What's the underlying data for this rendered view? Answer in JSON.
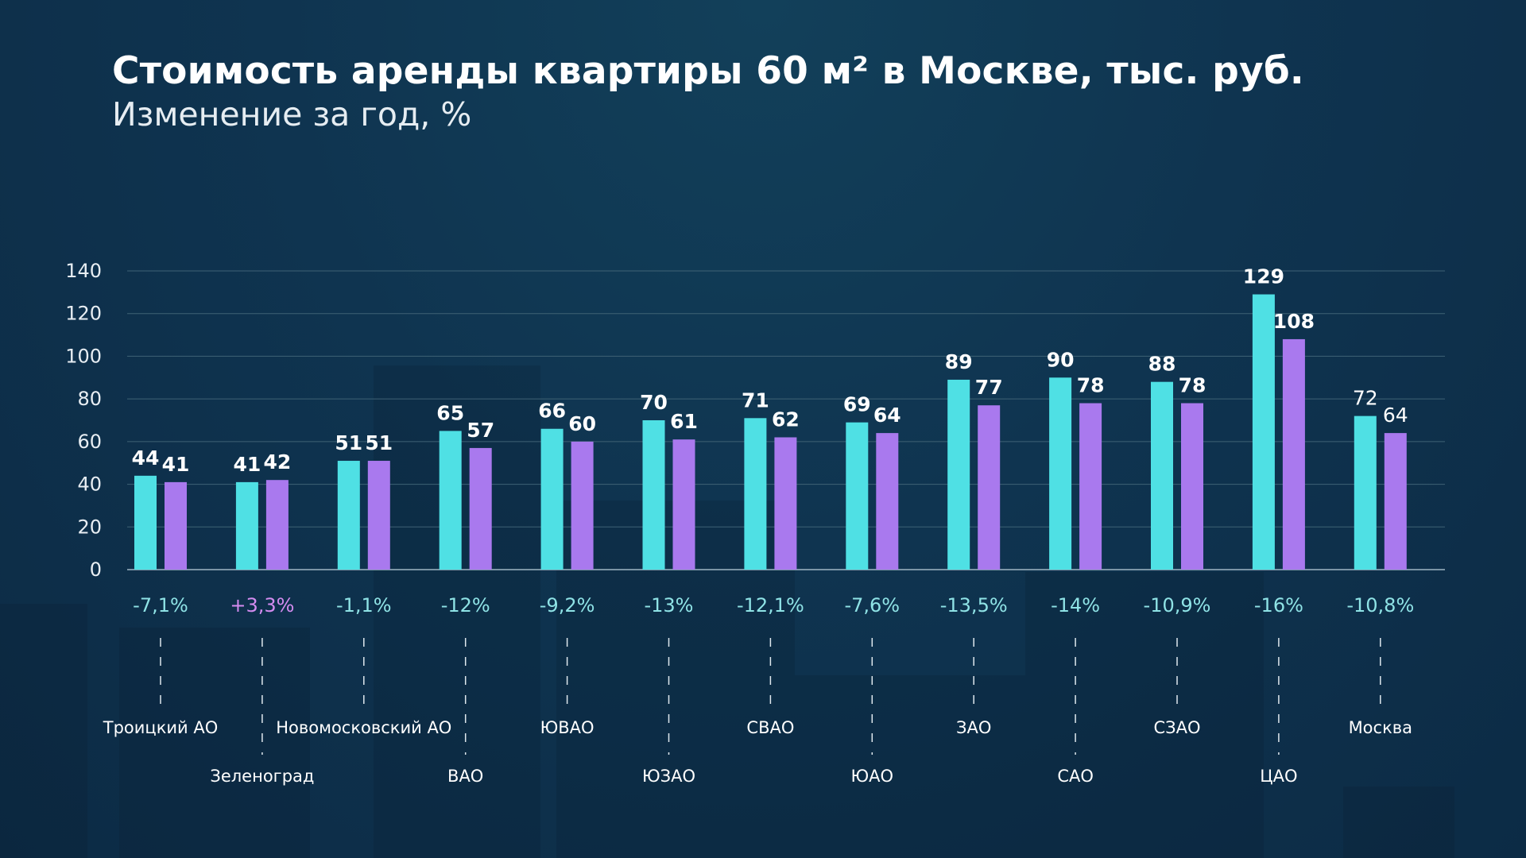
{
  "colors": {
    "series_2023": "#4fe0e4",
    "series_2024": "#a979ee",
    "change_negative": "#8fe3e6",
    "change_positive": "#d48cf0",
    "grid": "#3f6275"
  },
  "chart_data": {
    "type": "bar",
    "title": "Стоимость аренды квартиры 60 м² в Москве, тыс. руб.",
    "subtitle": "Изменение за год, %",
    "ylim": [
      0,
      140
    ],
    "yticks": [
      0,
      20,
      40,
      60,
      80,
      100,
      120,
      140
    ],
    "grid": true,
    "categories": [
      "Троицкий АО",
      "Зеленоград",
      "Новомосковский АО",
      "ВАО",
      "ЮВАО",
      "ЮЗАО",
      "СВАО",
      "ЮАО",
      "ЗАО",
      "САО",
      "СЗАО",
      "ЦАО",
      "Москва"
    ],
    "series": [
      {
        "values": [
          44,
          41,
          51,
          65,
          66,
          70,
          71,
          69,
          89,
          90,
          88,
          129,
          72
        ]
      },
      {
        "values": [
          41,
          42,
          51,
          57,
          60,
          61,
          62,
          64,
          77,
          78,
          78,
          108,
          64
        ]
      }
    ],
    "changes": [
      "-7,1%",
      "+3,3%",
      "-1,1%",
      "-12%",
      "-9,2%",
      "-13%",
      "-12,1%",
      "-7,6%",
      "-13,5%",
      "-14%",
      "-10,9%",
      "-16%",
      "-10,8%"
    ]
  }
}
